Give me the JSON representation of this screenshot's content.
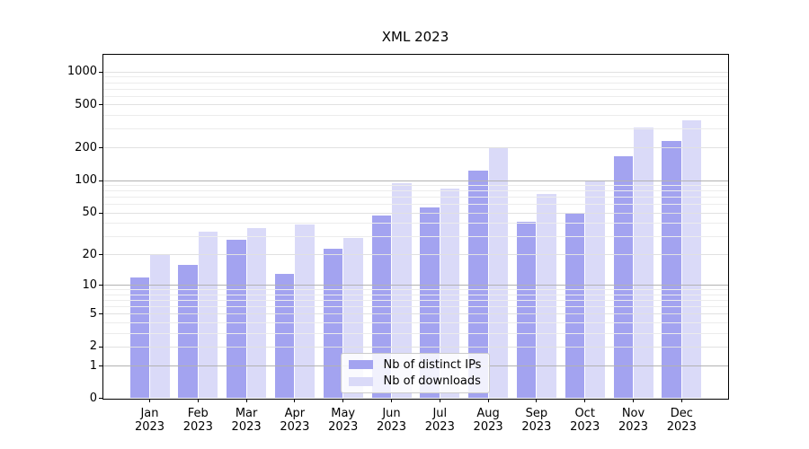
{
  "title": "XML 2023",
  "chart_data": {
    "type": "bar",
    "title": "XML 2023",
    "categories": [
      "Jan 2023",
      "Feb 2023",
      "Mar 2023",
      "Apr 2023",
      "May 2023",
      "Jun 2023",
      "Jul 2023",
      "Aug 2023",
      "Sep 2023",
      "Oct 2023",
      "Nov 2023",
      "Dec 2023"
    ],
    "x_tick_months": [
      "Jan",
      "Feb",
      "Mar",
      "Apr",
      "May",
      "Jun",
      "Jul",
      "Aug",
      "Sep",
      "Oct",
      "Nov",
      "Dec"
    ],
    "x_tick_year": "2023",
    "series": [
      {
        "name": "Nb of distinct IPs",
        "color": "#a3a3f0",
        "values": [
          12,
          16,
          28,
          13,
          23,
          47,
          56,
          124,
          41,
          49,
          167,
          234
        ]
      },
      {
        "name": "Nb of downloads",
        "color": "#dadaf8",
        "values": [
          20,
          33,
          36,
          39,
          29,
          94,
          85,
          200,
          75,
          100,
          309,
          360
        ]
      }
    ],
    "y_ticks": [
      0,
      1,
      2,
      5,
      10,
      20,
      50,
      100,
      200,
      500,
      1000
    ],
    "y_scale": "log(value+1)",
    "ylim": [
      0,
      1475
    ],
    "grid": true,
    "legend_position": "lower center",
    "colors": {
      "grid_major": "#b2b2b2",
      "grid_labeled": "#e1e1e1",
      "grid_minor": "#ececec",
      "axis": "#000000",
      "background": "#ffffff"
    }
  }
}
